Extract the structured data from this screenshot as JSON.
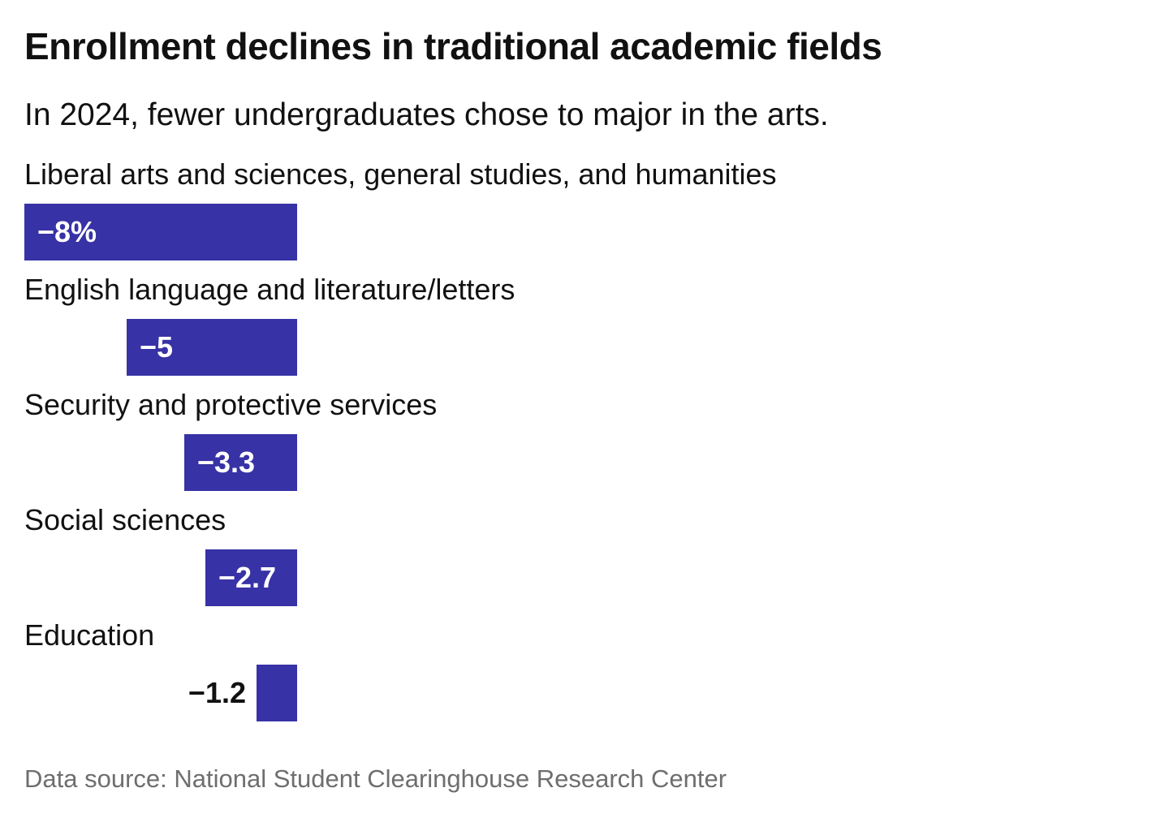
{
  "header": {
    "title": "Enrollment declines in traditional academic fields",
    "subtitle": "In 2024, fewer undergraduates chose to major in the arts."
  },
  "chart_data": {
    "type": "bar",
    "orientation": "horizontal",
    "title": "Enrollment declines in traditional academic fields",
    "subtitle": "In 2024, fewer undergraduates chose to major in the arts.",
    "xlabel": "",
    "ylabel": "",
    "xlim": [
      -8,
      0
    ],
    "grid": false,
    "legend": false,
    "bar_color": "#3732a5",
    "value_label_color_inside": "#ffffff",
    "value_label_color_outside": "#111111",
    "categories": [
      "Liberal arts and sciences, general studies, and humanities",
      "English language and literature/letters",
      "Security and protective services",
      "Social sciences",
      "Education"
    ],
    "values": [
      -8,
      -5,
      -3.3,
      -2.7,
      -1.2
    ],
    "rows": [
      {
        "category": "Liberal arts and sciences, general studies, and humanities",
        "value": -8,
        "value_label": "−8%",
        "value_label_position": "inside"
      },
      {
        "category": "English language and literature/letters",
        "value": -5,
        "value_label": "−5",
        "value_label_position": "inside"
      },
      {
        "category": "Security and protective services",
        "value": -3.3,
        "value_label": "−3.3",
        "value_label_position": "inside"
      },
      {
        "category": "Social sciences",
        "value": -2.7,
        "value_label": "−2.7",
        "value_label_position": "inside"
      },
      {
        "category": "Education",
        "value": -1.2,
        "value_label": "−1.2",
        "value_label_position": "outside"
      }
    ]
  },
  "footer": {
    "source": "Data source: National Student Clearinghouse Research Center"
  }
}
